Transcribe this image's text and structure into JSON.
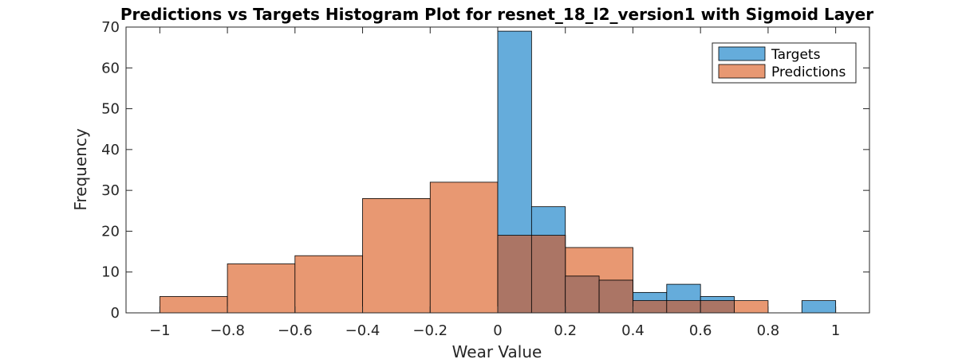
{
  "chart_data": {
    "type": "bar",
    "subtype": "overlapping-histogram",
    "title": "Predictions vs Targets Histogram Plot for resnet_18_l2_version1 with Sigmoid Layer",
    "xlabel": "Wear Value",
    "ylabel": "Frequency",
    "xlim": [
      -1.1,
      1.1
    ],
    "ylim": [
      0,
      70
    ],
    "xticks": [
      "-1",
      "-0.8",
      "-0.6",
      "-0.4",
      "-0.2",
      "0",
      "0.2",
      "0.4",
      "0.6",
      "0.8",
      "1"
    ],
    "yticks": [
      "0",
      "10",
      "20",
      "30",
      "40",
      "50",
      "60",
      "70"
    ],
    "legend_position": "top-right",
    "grid": false,
    "series": [
      {
        "name": "Targets",
        "color": "#65ACDB",
        "bins": [
          {
            "x0": 0.0,
            "x1": 0.1,
            "count": 69
          },
          {
            "x0": 0.1,
            "x1": 0.2,
            "count": 26
          },
          {
            "x0": 0.2,
            "x1": 0.3,
            "count": 9
          },
          {
            "x0": 0.3,
            "x1": 0.4,
            "count": 8
          },
          {
            "x0": 0.4,
            "x1": 0.5,
            "count": 5
          },
          {
            "x0": 0.5,
            "x1": 0.6,
            "count": 7
          },
          {
            "x0": 0.6,
            "x1": 0.7,
            "count": 4
          },
          {
            "x0": 0.9,
            "x1": 1.0,
            "count": 3
          }
        ]
      },
      {
        "name": "Predictions",
        "color": "#E89872",
        "bins": [
          {
            "x0": -1.0,
            "x1": -0.8,
            "count": 4
          },
          {
            "x0": -0.8,
            "x1": -0.6,
            "count": 12
          },
          {
            "x0": -0.6,
            "x1": -0.4,
            "count": 14
          },
          {
            "x0": -0.4,
            "x1": -0.2,
            "count": 28
          },
          {
            "x0": -0.2,
            "x1": 0.0,
            "count": 32
          },
          {
            "x0": 0.0,
            "x1": 0.2,
            "count": 19
          },
          {
            "x0": 0.2,
            "x1": 0.4,
            "count": 16
          },
          {
            "x0": 0.4,
            "x1": 0.7,
            "count": 3
          },
          {
            "x0": 0.7,
            "x1": 0.8,
            "count": 3
          }
        ]
      }
    ],
    "overlap_color": "#AB7565"
  }
}
